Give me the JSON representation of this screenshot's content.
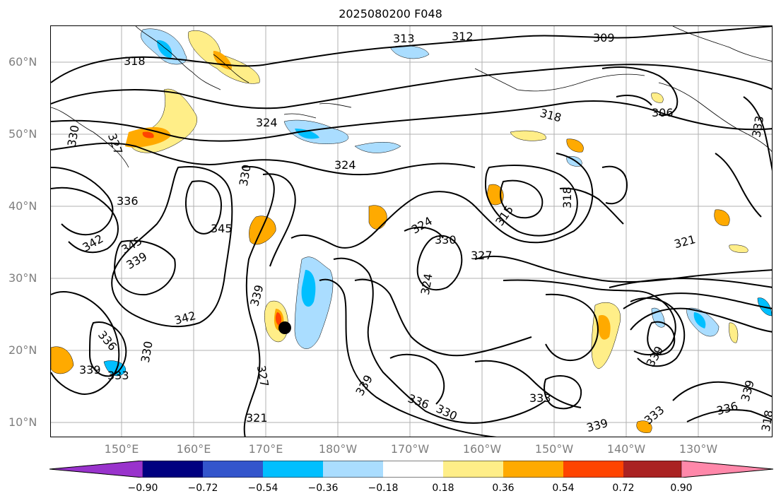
{
  "title": "2025080200 F048",
  "lat_labels": [
    "60°N",
    "50°N",
    "40°N",
    "30°N",
    "20°N",
    "10°N"
  ],
  "lon_labels": [
    "150°E",
    "160°E",
    "170°E",
    "180°W",
    "170°W",
    "160°W",
    "150°W",
    "140°W",
    "130°W"
  ],
  "colorbar": {
    "ticks": [
      "−0.90",
      "−0.72",
      "−0.54",
      "−0.36",
      "−0.18",
      "0.18",
      "0.36",
      "0.54",
      "0.72",
      "0.90"
    ],
    "colors": [
      "#9933cc",
      "#000080",
      "#3355cc",
      "#00bfff",
      "#aaddff",
      "#ffffff",
      "#ffee88",
      "#ffaa00",
      "#ff4400",
      "#aa2222",
      "#ff88aa"
    ]
  },
  "contour_labels": [
    "318",
    "313",
    "312",
    "309",
    "306",
    "324",
    "330",
    "327",
    "324",
    "336",
    "342",
    "345",
    "339",
    "345",
    "342",
    "330",
    "318",
    "315",
    "318",
    "324",
    "330",
    "327",
    "324",
    "339",
    "336",
    "339",
    "333",
    "330",
    "327",
    "321",
    "339",
    "336",
    "330",
    "333",
    "339",
    "339",
    "333",
    "336",
    "339",
    "318",
    "321",
    "333"
  ],
  "marker": "storm-center"
}
